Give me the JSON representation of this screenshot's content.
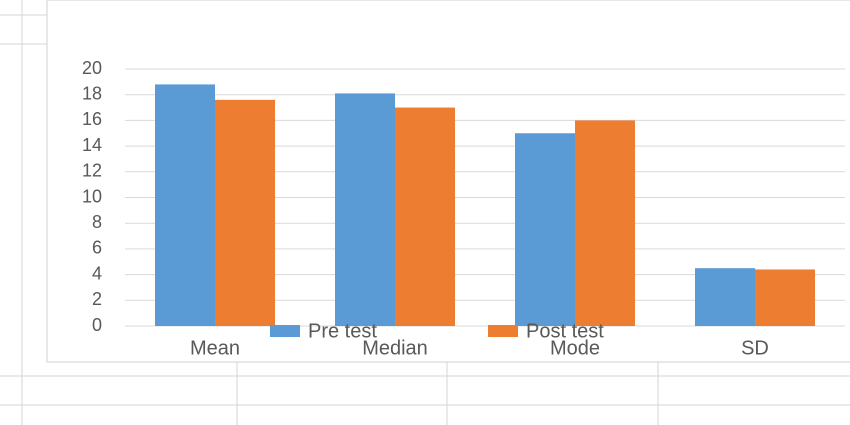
{
  "chart_data": {
    "type": "bar",
    "categories": [
      "Mean",
      "Median",
      "Mode",
      "SD"
    ],
    "series": [
      {
        "name": "Pre test",
        "color": "#5b9bd5",
        "values": [
          18.8,
          18.1,
          15.0,
          4.5
        ]
      },
      {
        "name": "Post test",
        "color": "#ed7d31",
        "values": [
          17.6,
          17.0,
          16.0,
          4.4
        ]
      }
    ],
    "ylim": [
      0,
      20
    ],
    "yticks": [
      0,
      2,
      4,
      6,
      8,
      10,
      12,
      14,
      16,
      18,
      20
    ],
    "grid": true,
    "legend": "bottom"
  }
}
